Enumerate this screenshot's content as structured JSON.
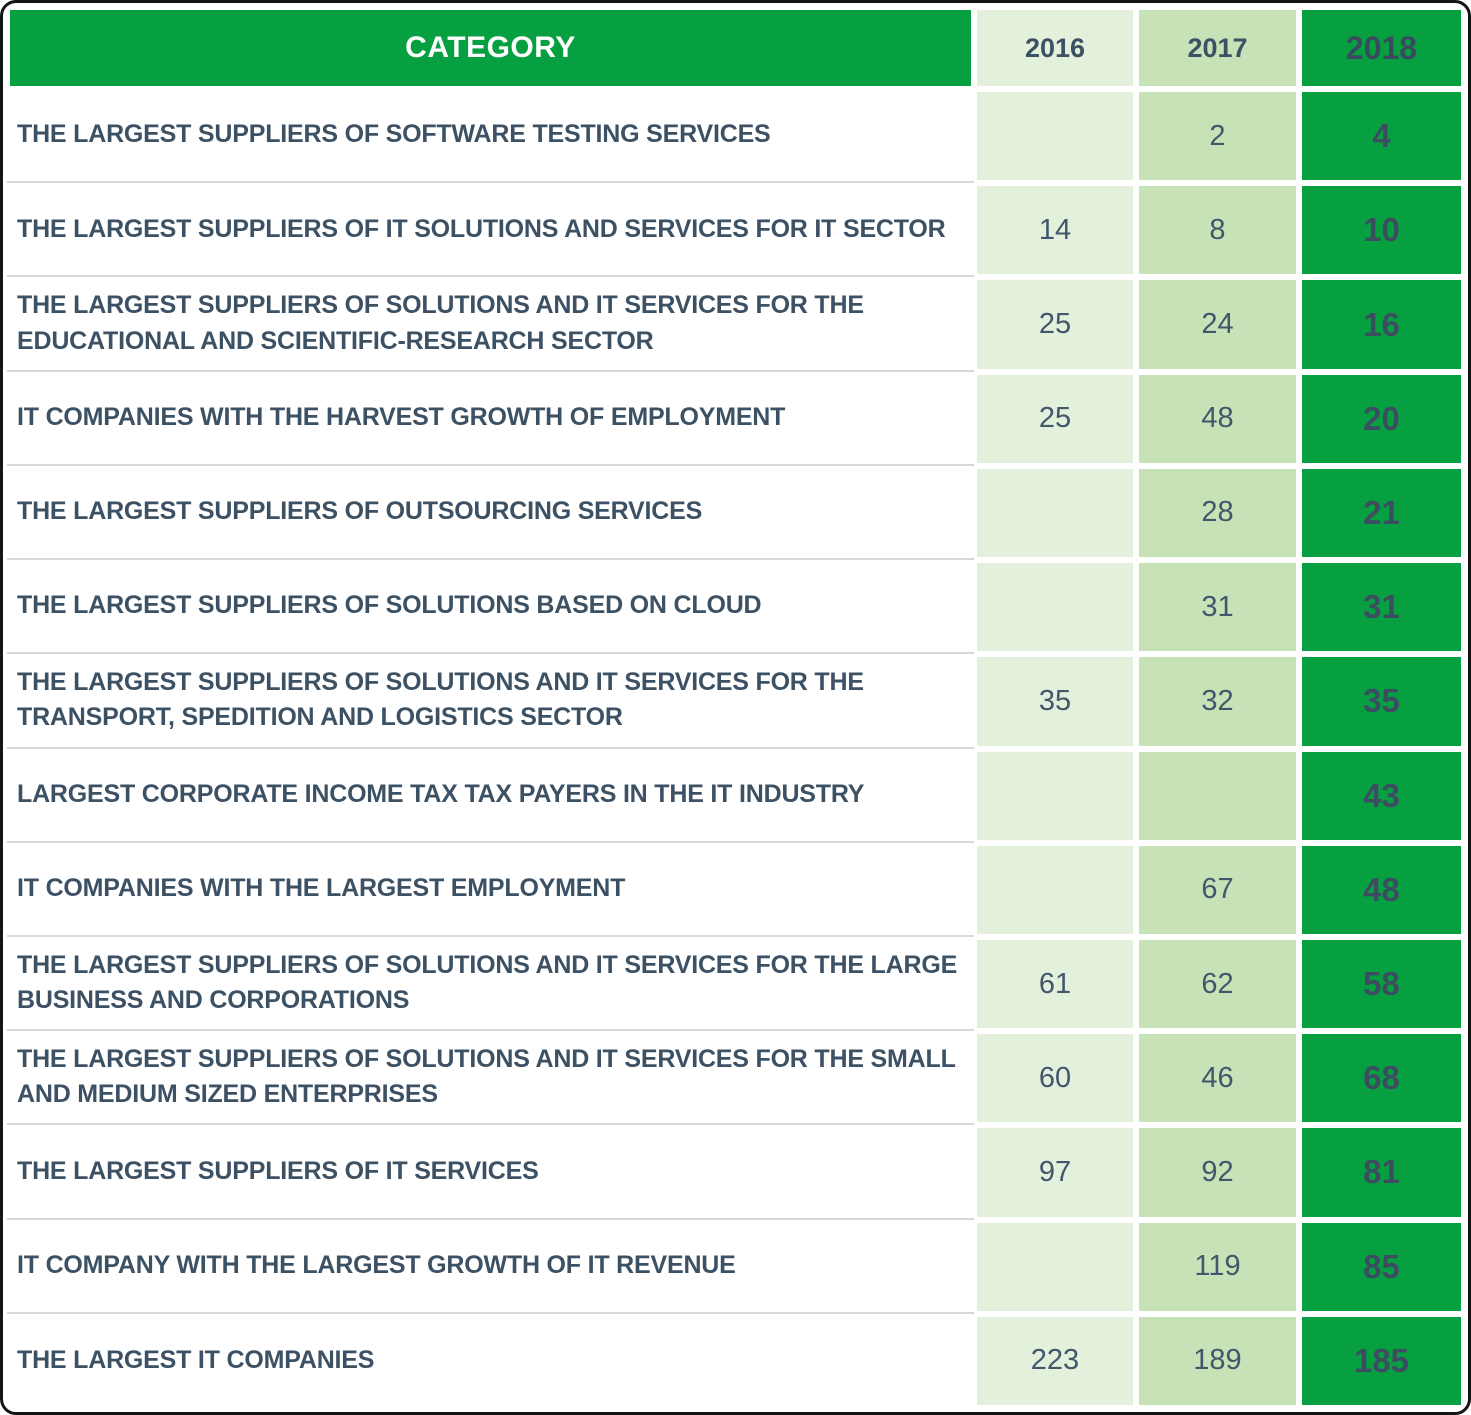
{
  "colors": {
    "green": "#07a041",
    "green_2016": "#e3f0dc",
    "green_2017": "#c8e2b7",
    "slate_text": "#3d5164",
    "row_divider": "#d9d9d9",
    "header_text": "#ffffff"
  },
  "table": {
    "header": {
      "category": "CATEGORY",
      "years": [
        "2016",
        "2017",
        "2018"
      ]
    },
    "rows": [
      {
        "category": "THE LARGEST SUPPLIERS OF SOFTWARE TESTING SERVICES",
        "y2016": "",
        "y2017": "2",
        "y2018": "4"
      },
      {
        "category": "THE LARGEST SUPPLIERS OF IT SOLUTIONS AND SERVICES FOR IT SECTOR",
        "y2016": "14",
        "y2017": "8",
        "y2018": "10"
      },
      {
        "category": "THE LARGEST SUPPLIERS OF SOLUTIONS AND IT SERVICES FOR THE EDUCATIONAL AND SCIENTIFIC-RESEARCH SECTOR",
        "y2016": "25",
        "y2017": "24",
        "y2018": "16"
      },
      {
        "category": "IT COMPANIES WITH THE HARVEST GROWTH OF EMPLOYMENT",
        "y2016": "25",
        "y2017": "48",
        "y2018": "20"
      },
      {
        "category": "THE LARGEST SUPPLIERS OF OUTSOURCING SERVICES",
        "y2016": "",
        "y2017": "28",
        "y2018": "21"
      },
      {
        "category": "THE LARGEST SUPPLIERS OF SOLUTIONS BASED ON CLOUD",
        "y2016": "",
        "y2017": "31",
        "y2018": "31"
      },
      {
        "category": "THE LARGEST SUPPLIERS OF SOLUTIONS AND IT SERVICES FOR THE TRANSPORT, SPEDITION AND LOGISTICS SECTOR",
        "y2016": "35",
        "y2017": "32",
        "y2018": "35"
      },
      {
        "category": "LARGEST CORPORATE INCOME TAX TAX PAYERS IN THE IT INDUSTRY",
        "y2016": "",
        "y2017": "",
        "y2018": "43"
      },
      {
        "category": "IT COMPANIES WITH THE LARGEST EMPLOYMENT",
        "y2016": "",
        "y2017": "67",
        "y2018": "48"
      },
      {
        "category": "THE LARGEST SUPPLIERS OF SOLUTIONS AND IT SERVICES FOR THE LARGE BUSINESS AND CORPORATIONS",
        "y2016": "61",
        "y2017": "62",
        "y2018": "58"
      },
      {
        "category": "THE LARGEST SUPPLIERS OF SOLUTIONS AND IT SERVICES FOR THE SMALL AND MEDIUM SIZED ENTERPRISES",
        "y2016": "60",
        "y2017": "46",
        "y2018": "68"
      },
      {
        "category": "THE LARGEST SUPPLIERS OF IT SERVICES",
        "y2016": "97",
        "y2017": "92",
        "y2018": "81"
      },
      {
        "category": "IT COMPANY WITH THE LARGEST GROWTH OF IT REVENUE",
        "y2016": "",
        "y2017": "119",
        "y2018": "85"
      },
      {
        "category": "THE LARGEST IT COMPANIES",
        "y2016": "223",
        "y2017": "189",
        "y2018": "185"
      }
    ]
  },
  "chart_data": {
    "type": "table",
    "title": "CATEGORY",
    "categories": [
      "THE LARGEST SUPPLIERS OF SOFTWARE TESTING SERVICES",
      "THE LARGEST SUPPLIERS OF IT SOLUTIONS AND SERVICES FOR IT SECTOR",
      "THE LARGEST SUPPLIERS OF SOLUTIONS AND IT SERVICES FOR THE EDUCATIONAL AND SCIENTIFIC-RESEARCH SECTOR",
      "IT COMPANIES WITH THE HARVEST GROWTH OF EMPLOYMENT",
      "THE LARGEST SUPPLIERS OF OUTSOURCING SERVICES",
      "THE LARGEST SUPPLIERS OF SOLUTIONS BASED ON CLOUD",
      "THE LARGEST SUPPLIERS OF SOLUTIONS AND IT SERVICES FOR THE TRANSPORT, SPEDITION AND LOGISTICS SECTOR",
      "LARGEST CORPORATE INCOME TAX TAX PAYERS IN THE IT INDUSTRY",
      "IT COMPANIES WITH THE LARGEST EMPLOYMENT",
      "THE LARGEST SUPPLIERS OF SOLUTIONS AND IT SERVICES FOR THE LARGE BUSINESS AND CORPORATIONS",
      "THE LARGEST SUPPLIERS OF SOLUTIONS AND IT SERVICES FOR THE SMALL AND MEDIUM SIZED ENTERPRISES",
      "THE LARGEST SUPPLIERS OF IT SERVICES",
      "IT COMPANY WITH THE LARGEST GROWTH OF IT REVENUE",
      "THE LARGEST IT COMPANIES"
    ],
    "series": [
      {
        "name": "2016",
        "values": [
          null,
          14,
          25,
          25,
          null,
          null,
          35,
          null,
          null,
          61,
          60,
          97,
          null,
          223
        ]
      },
      {
        "name": "2017",
        "values": [
          2,
          8,
          24,
          48,
          28,
          31,
          32,
          null,
          67,
          62,
          46,
          92,
          119,
          189
        ]
      },
      {
        "name": "2018",
        "values": [
          4,
          10,
          16,
          20,
          21,
          31,
          35,
          43,
          48,
          58,
          68,
          81,
          85,
          185
        ]
      }
    ]
  }
}
